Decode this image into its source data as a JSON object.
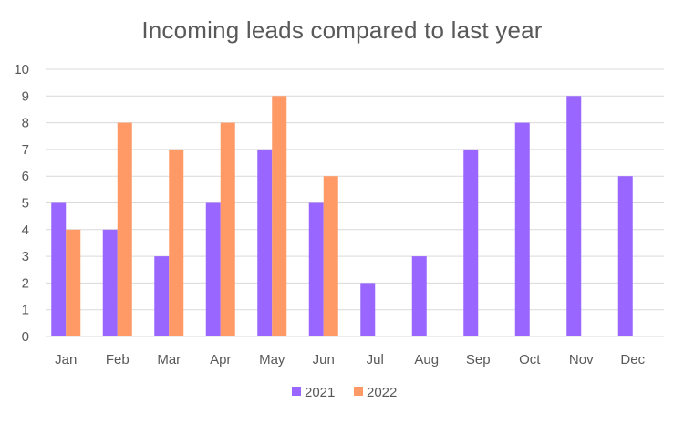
{
  "chart_data": {
    "type": "bar",
    "title": "Incoming leads compared to last year",
    "xlabel": "",
    "ylabel": "",
    "categories": [
      "Jan",
      "Feb",
      "Mar",
      "Apr",
      "May",
      "Jun",
      "Jul",
      "Aug",
      "Sep",
      "Oct",
      "Nov",
      "Dec"
    ],
    "series": [
      {
        "name": "2021",
        "color": "#9966ff",
        "values": [
          5,
          4,
          3,
          5,
          7,
          5,
          2,
          3,
          7,
          8,
          9,
          6
        ]
      },
      {
        "name": "2022",
        "color": "#ff9966",
        "values": [
          4,
          8,
          7,
          8,
          9,
          6,
          null,
          null,
          null,
          null,
          null,
          null
        ]
      }
    ],
    "ylim": [
      0,
      10
    ],
    "yticks": [
      "0",
      "1",
      "2",
      "3",
      "4",
      "5",
      "6",
      "7",
      "8",
      "9",
      "10"
    ],
    "grid": "horizontal",
    "legend": "bottom",
    "gridline_color": "#d9d9d9"
  }
}
